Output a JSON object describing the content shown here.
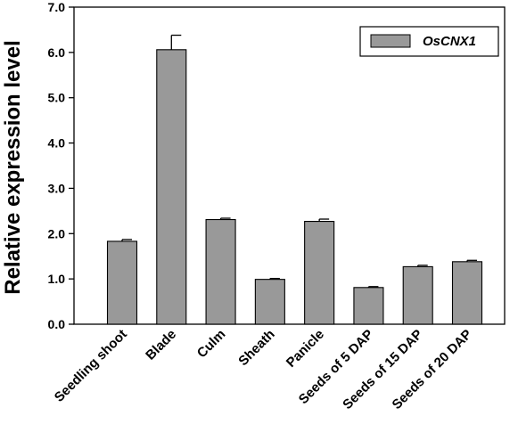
{
  "chart_data": {
    "type": "bar",
    "categories": [
      "Seedling shoot",
      "Blade",
      "Culm",
      "Sheath",
      "Panicle",
      "Seeds of 5 DAP",
      "Seeds of 15 DAP",
      "Seeds of 20 DAP"
    ],
    "series": [
      {
        "name": "OsCNX1",
        "values": [
          1.83,
          6.06,
          2.31,
          0.99,
          2.27,
          0.81,
          1.27,
          1.38
        ],
        "errors": [
          0.04,
          0.32,
          0.03,
          0.02,
          0.05,
          0.02,
          0.03,
          0.03
        ]
      }
    ],
    "ylabel": "Relative expression level",
    "xlabel": "",
    "ylim": [
      0,
      7
    ],
    "yticks": [
      "0.0",
      "1.0",
      "2.0",
      "3.0",
      "4.0",
      "5.0",
      "6.0",
      "7.0"
    ],
    "legend": {
      "position": "top-right",
      "label": "OsCNX1"
    },
    "grid": false,
    "colors": {
      "bar": "#999999",
      "bar_edge": "#000000",
      "axis": "#000000"
    }
  }
}
